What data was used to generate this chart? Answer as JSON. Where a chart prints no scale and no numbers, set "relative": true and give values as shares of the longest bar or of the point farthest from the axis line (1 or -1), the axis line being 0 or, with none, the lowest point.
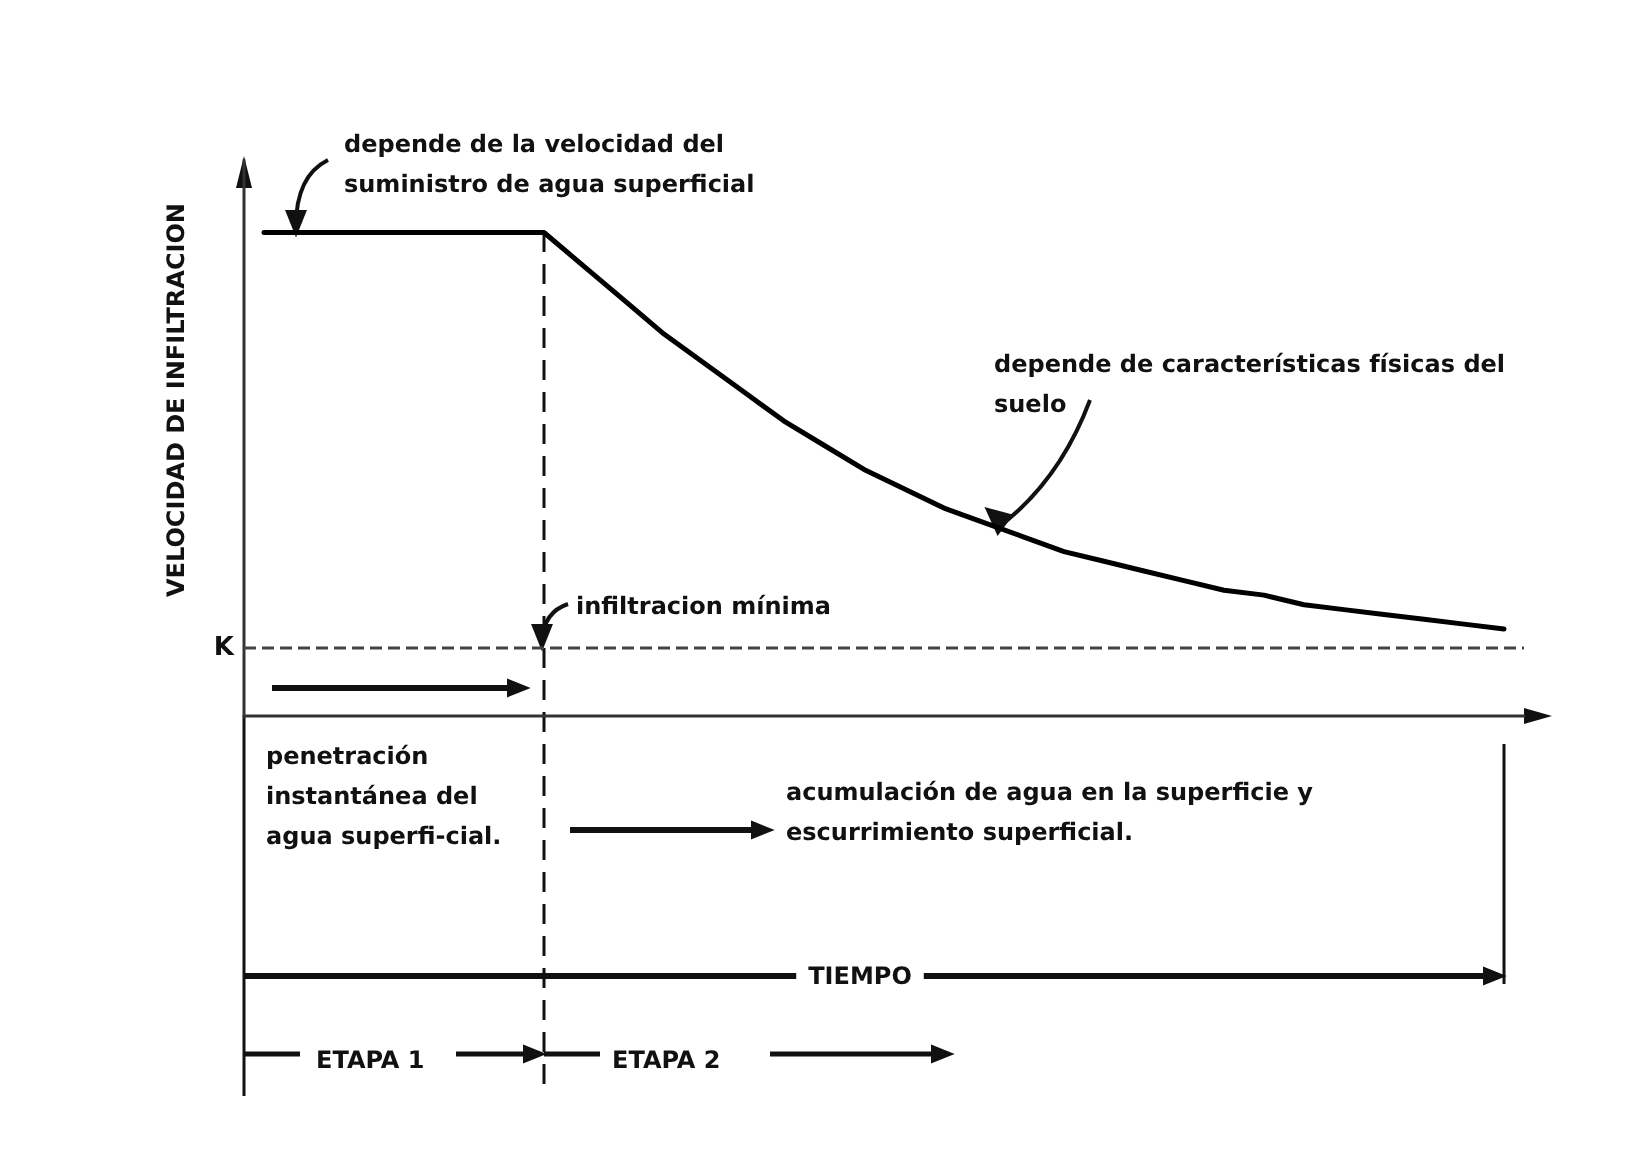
{
  "chart_data": {
    "type": "line",
    "relative": true,
    "ylabel": "VELOCIDAD DE INFILTRACION",
    "categories": [
      null,
      null,
      null,
      null,
      null,
      null,
      null,
      null,
      null,
      null,
      null,
      null,
      null,
      null,
      null,
      null,
      null,
      null,
      null,
      null,
      null,
      null,
      null,
      null,
      null,
      null,
      null,
      null,
      null,
      null,
      null,
      null
    ],
    "series": [
      {
        "color": "#000000",
        "values": [
          1,
          1,
          1,
          1,
          1,
          1,
          1,
          1,
          0.93,
          0.86,
          0.79,
          0.73,
          0.67,
          0.61,
          0.56,
          0.51,
          0.47,
          0.43,
          0.4,
          0.37,
          0.34,
          0.32,
          0.3,
          0.28,
          0.26,
          0.25,
          0.23,
          0.22,
          0.21,
          0.2,
          0.19,
          0.18
        ]
      }
    ],
    "ref_lines": [
      {
        "axis": "y",
        "value": 0.145,
        "label": "K",
        "line_style": "dashed",
        "color": "#444444"
      }
    ],
    "annotations": [
      "depende de la velocidad del suministro de agua superficial",
      "depende de características físicas del suelo",
      "infiltracion mínima",
      "penetración instantánea del agua superfi-cial.",
      "acumulación de agua en la superficie y escurrimiento superficial.",
      "ETAPA 1",
      "ETAPA 2",
      "TIEMPO"
    ],
    "marker": "none",
    "line_style": "solid",
    "grid": false
  }
}
